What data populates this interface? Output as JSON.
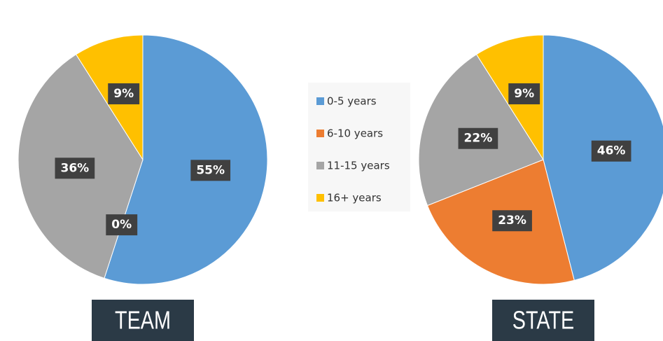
{
  "chart_data": {
    "type": "pie",
    "categories": [
      "0-5 years",
      "6-10 years",
      "11-15 years",
      "16+ years"
    ],
    "colors": [
      "#5b9bd5",
      "#ed7d31",
      "#a5a5a5",
      "#ffc000"
    ],
    "charts": [
      {
        "title": "TEAM",
        "values": [
          55,
          0,
          36,
          9
        ],
        "value_labels": [
          "55%",
          "0%",
          "36%",
          "9%"
        ]
      },
      {
        "title": "STATE",
        "values": [
          46,
          23,
          22,
          9
        ],
        "value_labels": [
          "46%",
          "23%",
          "22%",
          "9%"
        ]
      }
    ]
  }
}
